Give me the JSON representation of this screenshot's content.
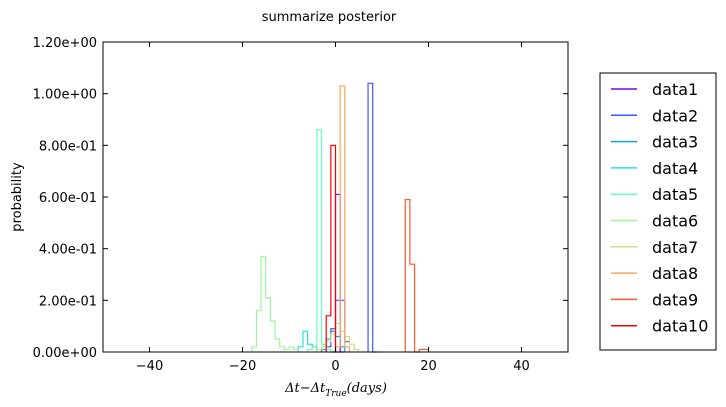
{
  "chart_data": {
    "type": "histogram",
    "title": "summarize posterior",
    "xlabel": "Δt−Δt_True(days)",
    "xlabel_parts": {
      "main": "Δt−Δt",
      "sub": "True",
      "tail": "(days)"
    },
    "ylabel": "probability",
    "xlim": [
      -50,
      50
    ],
    "ylim": [
      0,
      1.2
    ],
    "xticks": [
      -40,
      -20,
      0,
      20,
      40
    ],
    "xtick_labels": [
      "−40",
      "−20",
      "0",
      "20",
      "40"
    ],
    "yticks": [
      0.0,
      0.2,
      0.4,
      0.6,
      0.8,
      1.0,
      1.2
    ],
    "ytick_labels": [
      "0.00e+00",
      "2.00e-01",
      "4.00e-01",
      "6.00e-01",
      "8.00e-01",
      "1.00e+00",
      "1.20e+00"
    ],
    "bin_width": 1,
    "grid": false,
    "legend_position": "right",
    "series": [
      {
        "name": "data1",
        "color": "#8000ff",
        "bins": [
          [
            -1,
            0.0
          ],
          [
            0,
            0.61
          ],
          [
            1,
            0.0
          ]
        ]
      },
      {
        "name": "data2",
        "color": "#4556f7",
        "bins": [
          [
            -2,
            0.02
          ],
          [
            -1,
            0.09
          ],
          [
            0,
            0.2
          ],
          [
            1,
            0.2
          ],
          [
            2,
            0.04
          ],
          [
            7,
            1.04
          ],
          [
            8,
            0.0
          ]
        ]
      },
      {
        "name": "data3",
        "color": "#0da5e9",
        "bins": [
          [
            -3,
            0.01
          ],
          [
            -2,
            0.05
          ],
          [
            -1,
            0.08
          ],
          [
            0,
            0.06
          ],
          [
            1,
            0.02
          ]
        ]
      },
      {
        "name": "data4",
        "color": "#26e1dc",
        "bins": [
          [
            -8,
            0.02
          ],
          [
            -7,
            0.08
          ],
          [
            -6,
            0.03
          ],
          [
            -5,
            0.02
          ]
        ]
      },
      {
        "name": "data5",
        "color": "#64fdc4",
        "bins": [
          [
            -6,
            0.01
          ],
          [
            -5,
            0.02
          ],
          [
            -4,
            0.86
          ],
          [
            -3,
            0.03
          ],
          [
            -2,
            0.01
          ]
        ]
      },
      {
        "name": "data6",
        "color": "#9cf49c",
        "bins": [
          [
            -18,
            0.02
          ],
          [
            -17,
            0.16
          ],
          [
            -16,
            0.37
          ],
          [
            -15,
            0.21
          ],
          [
            -14,
            0.12
          ],
          [
            -13,
            0.05
          ],
          [
            -12,
            0.02
          ],
          [
            -11,
            0.01
          ],
          [
            -10,
            0.02
          ],
          [
            -9,
            0.01
          ]
        ]
      },
      {
        "name": "data7",
        "color": "#d1dd82",
        "bins": [
          [
            -4,
            0.01
          ],
          [
            -3,
            0.02
          ],
          [
            -2,
            0.04
          ],
          [
            -1,
            0.07
          ],
          [
            0,
            0.11
          ],
          [
            1,
            0.08
          ],
          [
            2,
            0.06
          ],
          [
            3,
            0.03
          ],
          [
            4,
            0.01
          ]
        ]
      },
      {
        "name": "data8",
        "color": "#ffa35a",
        "bins": [
          [
            0,
            0.02
          ],
          [
            1,
            1.03
          ],
          [
            2,
            0.02
          ]
        ]
      },
      {
        "name": "data9",
        "color": "#ff5731",
        "bins": [
          [
            15,
            0.59
          ],
          [
            16,
            0.34
          ],
          [
            17,
            0.0
          ],
          [
            18,
            0.01
          ],
          [
            19,
            0.01
          ]
        ]
      },
      {
        "name": "data10",
        "color": "#ff0000",
        "bins": [
          [
            -2,
            0.14
          ],
          [
            -1,
            0.8
          ],
          [
            0,
            0.0
          ]
        ]
      }
    ]
  }
}
